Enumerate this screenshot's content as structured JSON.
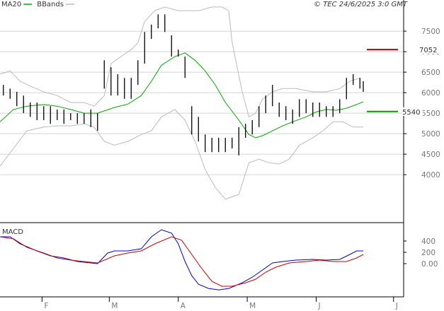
{
  "chart_data": [
    {
      "type": "ohlc",
      "credit": "© TEC 24/6/2025 3:0 GMT",
      "xlim": [
        0,
        120
      ],
      "ylim": [
        2830,
        8260
      ],
      "yticks": [
        4000,
        4500,
        5000,
        5500,
        6000,
        6500,
        7000,
        7500
      ],
      "grid": true,
      "bars": {
        "color": "#000000",
        "x": [
          1,
          3,
          5,
          7,
          9,
          11,
          13,
          15,
          17,
          19,
          21,
          23,
          25,
          27,
          29,
          31,
          33,
          35,
          37,
          39,
          41,
          43,
          45,
          47,
          49,
          51,
          53,
          55,
          57,
          59,
          61,
          63,
          65,
          67,
          69,
          71,
          73,
          75,
          77,
          79,
          81,
          83,
          85,
          87,
          89,
          91,
          93,
          95,
          97,
          99,
          101,
          103,
          105,
          107,
          108
        ],
        "high": [
          6190,
          6100,
          6020,
          5930,
          5760,
          5760,
          5670,
          5670,
          5590,
          5590,
          5500,
          5500,
          5500,
          5590,
          5500,
          6790,
          6620,
          6450,
          6360,
          6360,
          6790,
          7480,
          7660,
          7910,
          7910,
          7400,
          7050,
          6880,
          5670,
          5410,
          4980,
          4900,
          4900,
          4900,
          4900,
          5160,
          5240,
          5330,
          5670,
          5930,
          6190,
          5760,
          5670,
          5590,
          5840,
          5840,
          5760,
          5760,
          5670,
          5670,
          5840,
          6360,
          6450,
          6360,
          6280
        ],
        "low": [
          5930,
          5850,
          5670,
          5500,
          5410,
          5330,
          5330,
          5240,
          5330,
          5240,
          5330,
          5240,
          5240,
          5160,
          5070,
          6100,
          5930,
          5930,
          5850,
          5850,
          6190,
          6710,
          7310,
          7570,
          7480,
          6880,
          6880,
          6360,
          4980,
          4810,
          4550,
          4550,
          4550,
          4550,
          4640,
          4470,
          4900,
          4980,
          5160,
          5500,
          5670,
          5410,
          5330,
          5240,
          5410,
          5500,
          5410,
          5410,
          5410,
          5410,
          5500,
          5840,
          6190,
          6100,
          6020
        ]
      },
      "series": [
        {
          "name": "MA20",
          "color": "#00aa00",
          "x": [
            0,
            4,
            8,
            13,
            17,
            21,
            25,
            29,
            34,
            38,
            42,
            45,
            48,
            52,
            55,
            58,
            61,
            64,
            67,
            71,
            74,
            76,
            78,
            81,
            84,
            87,
            91,
            94,
            97,
            100,
            103,
            106,
            108
          ],
          "values": [
            5290,
            5590,
            5670,
            5710,
            5670,
            5590,
            5500,
            5500,
            5640,
            5720,
            5930,
            6280,
            6670,
            6880,
            6970,
            6790,
            6530,
            6190,
            5760,
            5330,
            4980,
            4900,
            4950,
            5070,
            5190,
            5290,
            5410,
            5530,
            5590,
            5570,
            5620,
            5710,
            5780
          ]
        },
        {
          "name": "BBands",
          "color": "#bbbbbb",
          "bands": [
            {
              "x": [
                0,
                3,
                6,
                9,
                13,
                17,
                21,
                25,
                28,
                31,
                33,
                36,
                39,
                41,
                43,
                46,
                49,
                53,
                56,
                59,
                63,
                66,
                68,
                69,
                72,
                74,
                76,
                78,
                81,
                84,
                88,
                93,
                97,
                101,
                104,
                107
              ],
              "values": [
                6450,
                6530,
                6280,
                6160,
                6020,
                5930,
                5760,
                5760,
                5670,
                5930,
                6710,
                6880,
                7050,
                7220,
                7740,
                8000,
                8090,
                8000,
                8000,
                8000,
                8090,
                8090,
                8000,
                7220,
                6020,
                5410,
                5500,
                5840,
                6020,
                6100,
                6100,
                6020,
                6020,
                6100,
                6280,
                6360
              ]
            },
            {
              "x": [
                0,
                4,
                8,
                13,
                17,
                21,
                25,
                28,
                31,
                34,
                38,
                42,
                45,
                48,
                52,
                55,
                58,
                61,
                64,
                67,
                71,
                74,
                77,
                80,
                83,
                86,
                89,
                93,
                96,
                99,
                102,
                105,
                108
              ],
              "values": [
                4210,
                4640,
                5070,
                5160,
                5190,
                5190,
                5240,
                5160,
                4810,
                4720,
                4810,
                4980,
                5070,
                5410,
                5590,
                5330,
                4810,
                4120,
                3690,
                3400,
                3520,
                4290,
                4380,
                4290,
                4260,
                4380,
                4720,
                4900,
                5070,
                5290,
                5290,
                5160,
                5160
              ]
            }
          ]
        }
      ],
      "levels": [
        {
          "value": 7052,
          "color": "#c00000"
        },
        {
          "value": 5540,
          "color": "#00a000"
        }
      ]
    },
    {
      "type": "line",
      "title": "MACD",
      "xlim": [
        0,
        120
      ],
      "ylim": [
        -587,
        712
      ],
      "yticks": [
        400,
        200,
        {
          "value": 0,
          "label": "0.00"
        }
      ],
      "xticks": [
        {
          "value": 12.5,
          "label": "F"
        },
        {
          "value": 32.5,
          "label": "M"
        },
        {
          "value": 53,
          "label": "A"
        },
        {
          "value": 73.5,
          "label": "M"
        },
        {
          "value": 94,
          "label": "J"
        },
        {
          "value": 117,
          "label": "J"
        }
      ],
      "series": [
        {
          "color": "#0000cc",
          "x": [
            0,
            3,
            6,
            11,
            15,
            19,
            23,
            27,
            29,
            32,
            34,
            38,
            42,
            45,
            48,
            51,
            53,
            55,
            57,
            59,
            62,
            65,
            68,
            72,
            75,
            78,
            81,
            84,
            88,
            93,
            97,
            101,
            104,
            106,
            108
          ],
          "values": [
            475,
            475,
            350,
            225,
            138,
            100,
            38,
            13,
            0,
            188,
            225,
            225,
            263,
            475,
            600,
            538,
            350,
            38,
            -213,
            -363,
            -438,
            -463,
            -438,
            -338,
            -238,
            -113,
            13,
            38,
            63,
            75,
            63,
            75,
            163,
            225,
            225
          ]
        },
        {
          "color": "#cc0000",
          "x": [
            0,
            4,
            8,
            13,
            17,
            21,
            25,
            29,
            34,
            38,
            42,
            46,
            51,
            54,
            57,
            60,
            63,
            66,
            69,
            73,
            76,
            79,
            82,
            86,
            91,
            95,
            99,
            103,
            106,
            108
          ],
          "values": [
            475,
            438,
            288,
            188,
            100,
            63,
            38,
            13,
            138,
            188,
            225,
            350,
            475,
            413,
            163,
            -88,
            -313,
            -400,
            -400,
            -338,
            -275,
            -150,
            -63,
            13,
            38,
            63,
            38,
            38,
            100,
            163
          ]
        }
      ]
    }
  ]
}
